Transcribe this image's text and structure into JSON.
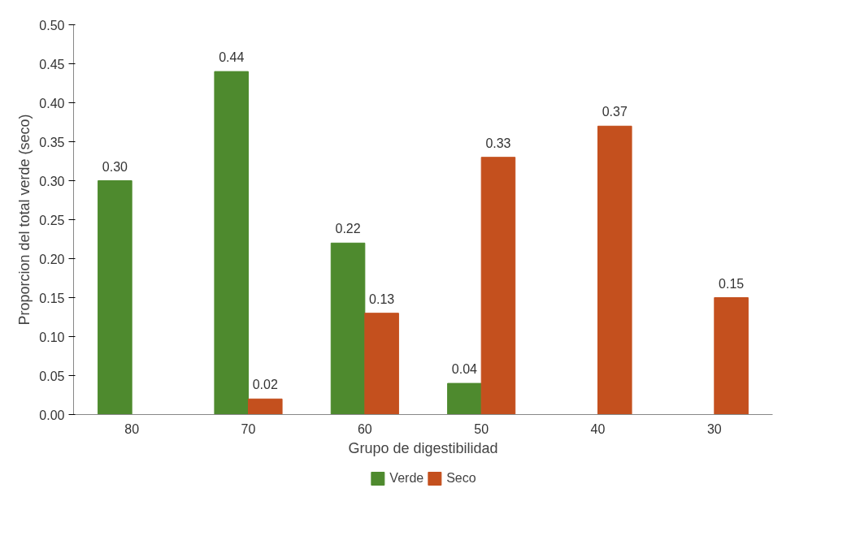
{
  "chart_data": {
    "type": "bar",
    "xlabel": "Grupo de digestibilidad",
    "ylabel": "Proporcion del total verde (seco)",
    "categories": [
      "80",
      "70",
      "60",
      "50",
      "40",
      "30"
    ],
    "series": [
      {
        "name": "Verde",
        "color": "#4e8a2e",
        "values": [
          0.3,
          0.44,
          0.22,
          0.04,
          null,
          null
        ],
        "value_labels": [
          "0.30",
          "0.44",
          "0.22",
          "0.04",
          null,
          null
        ]
      },
      {
        "name": "Seco",
        "color": "#c4501e",
        "values": [
          null,
          0.02,
          0.13,
          0.33,
          0.37,
          0.15
        ],
        "value_labels": [
          null,
          "0.02",
          "0.13",
          "0.33",
          "0.37",
          "0.15"
        ]
      }
    ],
    "ylim": [
      0,
      0.5
    ],
    "yticks": [
      {
        "value": 0,
        "label": "0.00"
      },
      {
        "value": 0.05,
        "label": "0.05"
      },
      {
        "value": 0.1,
        "label": "0.10"
      },
      {
        "value": 0.15,
        "label": "0.15"
      },
      {
        "value": 0.2,
        "label": "0.20"
      },
      {
        "value": 0.25,
        "label": "0.25"
      },
      {
        "value": 0.3,
        "label": "0.30"
      },
      {
        "value": 0.35,
        "label": "0.35"
      },
      {
        "value": 0.4,
        "label": "0.40"
      },
      {
        "value": 0.45,
        "label": "0.45"
      },
      {
        "value": 0.5,
        "label": "0.50"
      }
    ],
    "grid": false,
    "legend": "bottom"
  }
}
